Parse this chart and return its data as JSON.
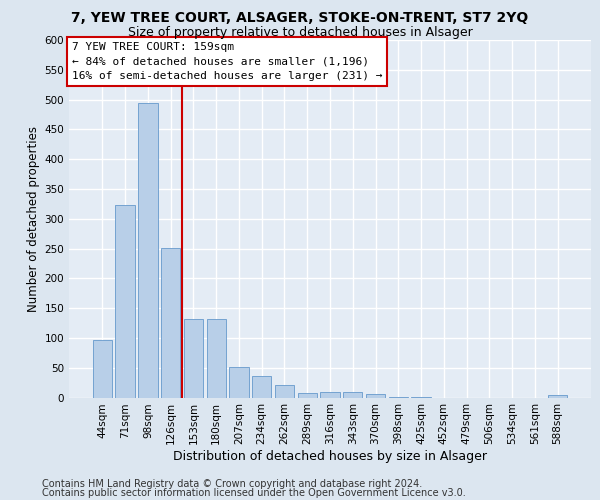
{
  "title1": "7, YEW TREE COURT, ALSAGER, STOKE-ON-TRENT, ST7 2YQ",
  "title2": "Size of property relative to detached houses in Alsager",
  "xlabel": "Distribution of detached houses by size in Alsager",
  "ylabel": "Number of detached properties",
  "categories": [
    "44sqm",
    "71sqm",
    "98sqm",
    "126sqm",
    "153sqm",
    "180sqm",
    "207sqm",
    "234sqm",
    "262sqm",
    "289sqm",
    "316sqm",
    "343sqm",
    "370sqm",
    "398sqm",
    "425sqm",
    "452sqm",
    "479sqm",
    "506sqm",
    "534sqm",
    "561sqm",
    "588sqm"
  ],
  "values": [
    97,
    323,
    495,
    251,
    132,
    132,
    52,
    36,
    21,
    8,
    10,
    10,
    6,
    1,
    1,
    0,
    0,
    0,
    0,
    0,
    5
  ],
  "bar_color": "#b8cfe8",
  "bar_edge_color": "#6699cc",
  "vline_index": 4,
  "annotation_line1": "7 YEW TREE COURT: 159sqm",
  "annotation_line2": "← 84% of detached houses are smaller (1,196)",
  "annotation_line3": "16% of semi-detached houses are larger (231) →",
  "box_facecolor": "#ffffff",
  "box_edgecolor": "#cc0000",
  "ylim": [
    0,
    600
  ],
  "yticks": [
    0,
    50,
    100,
    150,
    200,
    250,
    300,
    350,
    400,
    450,
    500,
    550,
    600
  ],
  "footer1": "Contains HM Land Registry data © Crown copyright and database right 2024.",
  "footer2": "Contains public sector information licensed under the Open Government Licence v3.0.",
  "bg_color": "#dce6f0",
  "plot_bg_color": "#e4ecf5",
  "grid_color": "#ffffff",
  "vline_color": "#cc0000",
  "title1_fontsize": 10,
  "title2_fontsize": 9,
  "xlabel_fontsize": 9,
  "ylabel_fontsize": 8.5,
  "tick_fontsize": 7.5,
  "annotation_fontsize": 8,
  "footer_fontsize": 7
}
